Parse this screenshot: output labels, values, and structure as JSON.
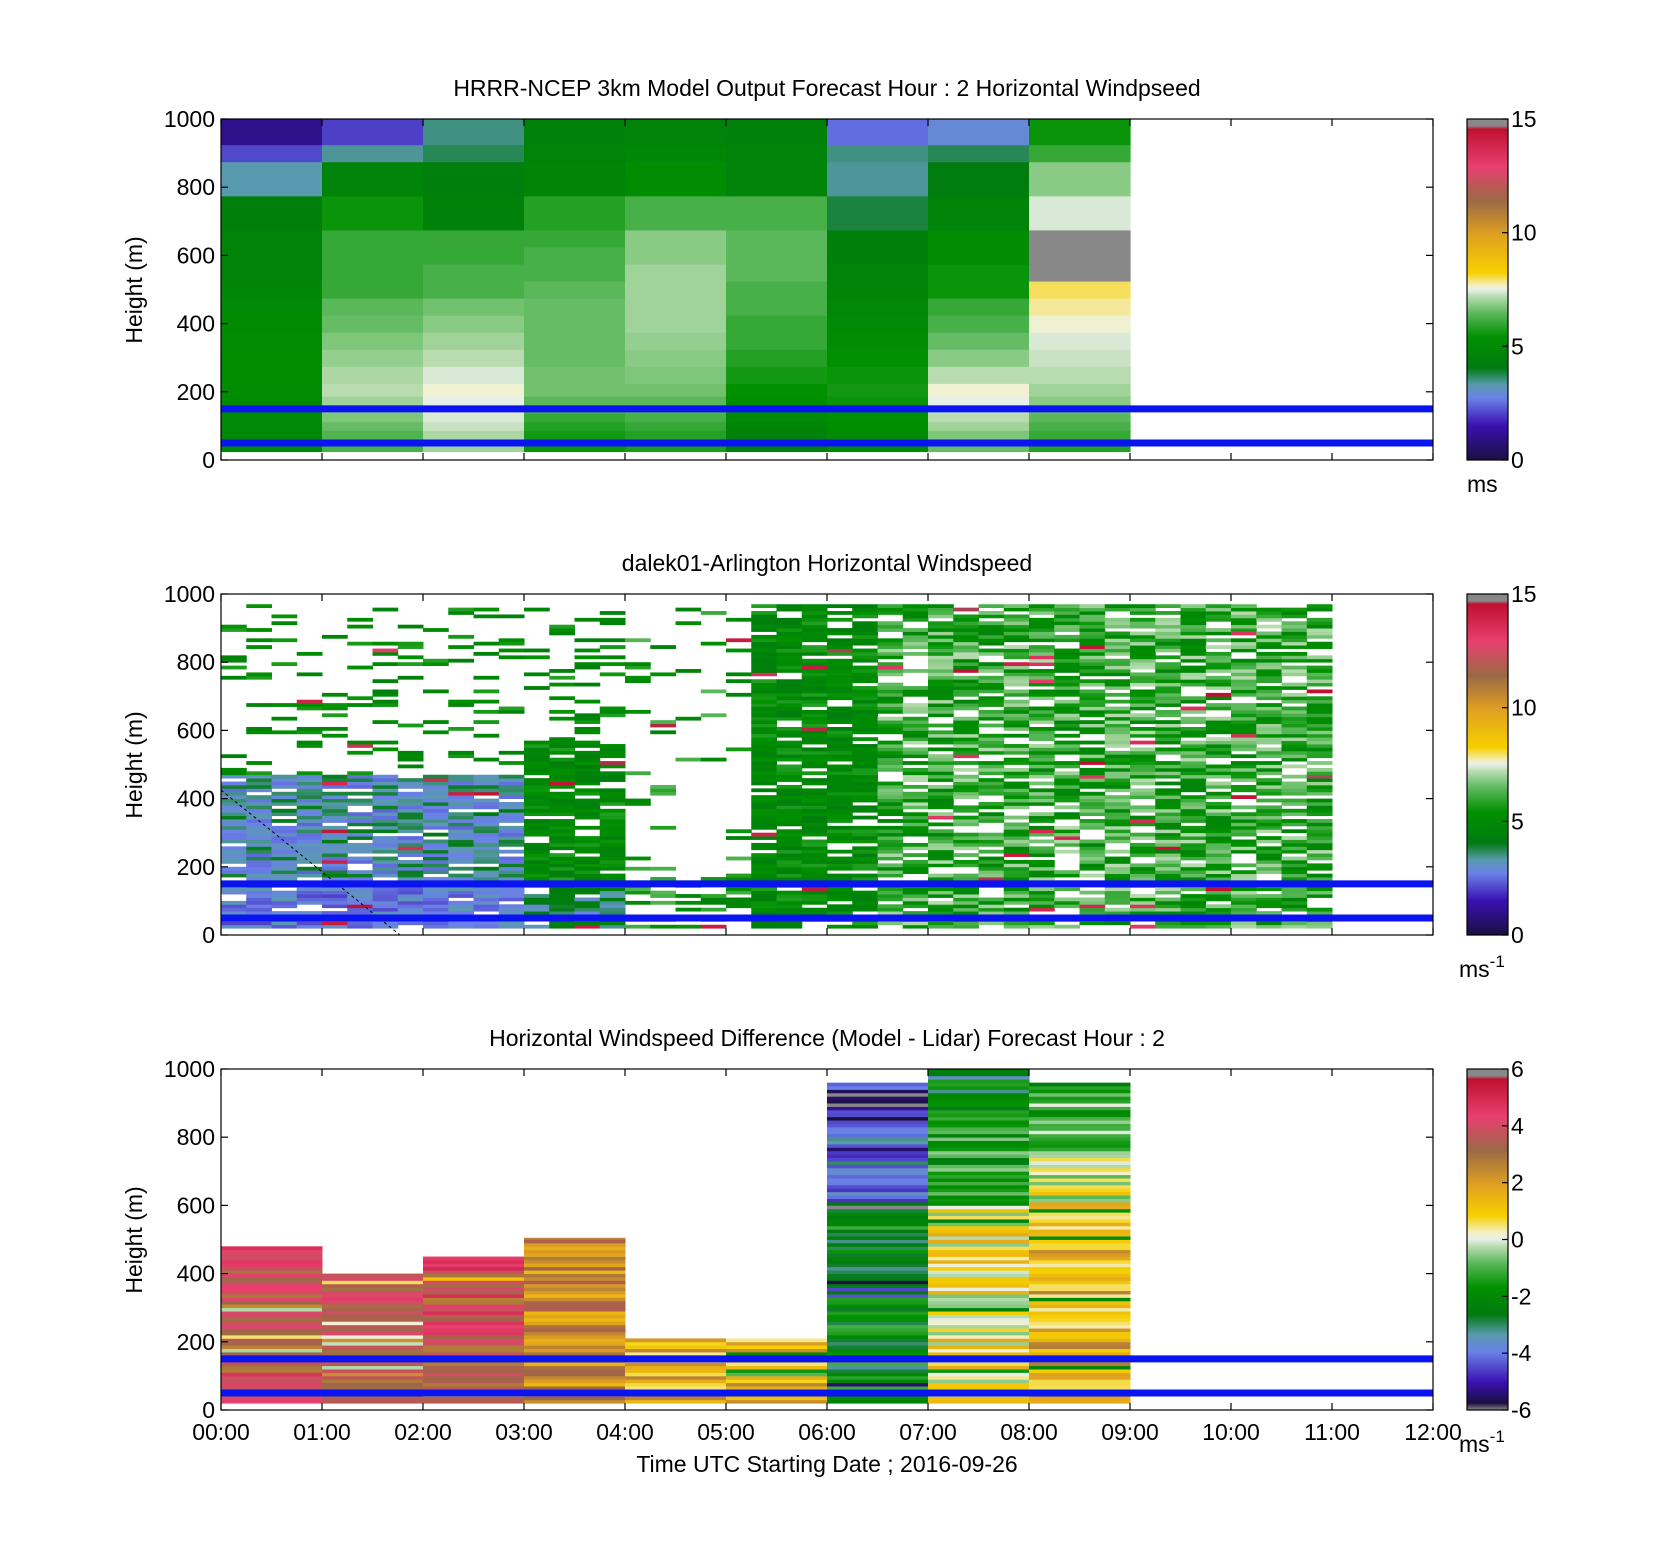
{
  "figure": {
    "xlabel": "Time UTC  Starting Date ; 2016-09-26",
    "x_ticks": [
      "00:00",
      "01:00",
      "02:00",
      "03:00",
      "04:00",
      "05:00",
      "06:00",
      "07:00",
      "08:00",
      "09:00",
      "10:00",
      "11:00",
      "12:00"
    ]
  },
  "chart_data": [
    {
      "type": "heatmap",
      "title": "HRRR-NCEP 3km Model Output   Forecast Hour : 2 Horizontal Windpseed",
      "ylabel": "Height (m)",
      "xlim": [
        0,
        12
      ],
      "ylim": [
        0,
        1000
      ],
      "y_ticks": [
        "0",
        "200",
        "400",
        "600",
        "800",
        "1000"
      ],
      "colorbar": {
        "min": 0,
        "max": 15,
        "ticks": [
          "0",
          "5",
          "10",
          "15"
        ],
        "unit": "ms"
      },
      "hlines": [
        50,
        150
      ],
      "hours": [
        0,
        1,
        2,
        3,
        4,
        5,
        6,
        7,
        8
      ],
      "heights": [
        50,
        75,
        100,
        125,
        150,
        175,
        200,
        250,
        300,
        350,
        400,
        450,
        500,
        550,
        600,
        650,
        700,
        750,
        800,
        850,
        900,
        950,
        1000
      ],
      "values": [
        [
          4.8,
          4.9,
          5.0,
          5.0,
          5.0,
          5.1,
          5.2,
          5.3,
          5.3,
          5.2,
          5.1,
          5.0,
          4.8,
          4.6,
          4.6,
          4.6,
          4.4,
          4.4,
          3.3,
          3.3,
          2.1,
          1.0,
          1.0
        ],
        [
          6.2,
          6.3,
          6.5,
          6.7,
          6.8,
          7.0,
          7.2,
          7.1,
          6.9,
          6.7,
          6.5,
          6.4,
          6.0,
          6.0,
          6.0,
          6.0,
          5.5,
          5.5,
          4.6,
          4.6,
          3.4,
          2.0,
          2.0
        ],
        [
          7.0,
          7.1,
          7.3,
          7.4,
          7.5,
          7.5,
          7.6,
          7.4,
          7.2,
          7.0,
          6.8,
          6.6,
          6.2,
          6.2,
          6.0,
          6.0,
          4.5,
          4.5,
          4.3,
          4.3,
          3.7,
          3.5,
          3.5
        ],
        [
          5.5,
          5.6,
          5.8,
          6.0,
          6.2,
          6.4,
          6.6,
          6.6,
          6.5,
          6.5,
          6.5,
          6.5,
          6.4,
          6.2,
          6.2,
          6.0,
          5.8,
          5.8,
          4.7,
          4.7,
          4.6,
          4.5,
          4.5
        ],
        [
          5.7,
          5.8,
          6.0,
          6.2,
          6.3,
          6.4,
          6.6,
          6.7,
          6.8,
          6.9,
          7.0,
          7.0,
          7.0,
          7.0,
          6.8,
          6.8,
          6.2,
          6.2,
          5.2,
          5.2,
          4.8,
          4.6,
          4.6
        ],
        [
          4.3,
          4.5,
          4.7,
          5.0,
          5.2,
          5.3,
          5.4,
          5.6,
          5.8,
          6.0,
          6.0,
          6.2,
          6.2,
          6.4,
          6.4,
          6.4,
          6.2,
          6.2,
          4.6,
          4.6,
          4.6,
          4.5,
          4.5
        ],
        [
          5.0,
          5.1,
          5.2,
          5.4,
          5.4,
          5.5,
          5.6,
          5.5,
          5.4,
          5.2,
          5.0,
          4.9,
          4.7,
          4.6,
          4.4,
          4.4,
          3.8,
          3.8,
          3.4,
          3.4,
          3.5,
          2.5,
          2.5
        ],
        [
          6.5,
          6.7,
          7.0,
          7.2,
          7.3,
          7.5,
          7.6,
          7.2,
          6.8,
          6.5,
          6.2,
          6.0,
          5.5,
          5.5,
          5.2,
          5.2,
          4.6,
          4.6,
          4.2,
          4.2,
          3.7,
          2.9,
          2.9
        ],
        [
          5.8,
          6.0,
          6.2,
          6.4,
          6.6,
          6.8,
          7.0,
          7.2,
          7.3,
          7.4,
          7.6,
          7.8,
          8.0,
          15.5,
          15.5,
          15.5,
          7.4,
          7.4,
          6.8,
          6.8,
          6.0,
          5.5,
          5.5
        ]
      ]
    },
    {
      "type": "heatmap",
      "title": "dalek01-Arlington  Horizontal Windspeed",
      "ylabel": "Height (m)",
      "xlim": [
        0,
        12
      ],
      "ylim": [
        0,
        1000
      ],
      "y_ticks": [
        "0",
        "200",
        "400",
        "600",
        "800",
        "1000"
      ],
      "colorbar": {
        "min": 0,
        "max": 15,
        "ticks": [
          "0",
          "5",
          "10",
          "15"
        ],
        "unit": "ms",
        "unit_exp": "-1"
      },
      "hlines": [
        50,
        150
      ],
      "data_extent_hours": [
        0,
        10.85
      ]
    },
    {
      "type": "heatmap",
      "title": "Horizontal Windspeed Difference (Model - Lidar) Forecast Hour : 2",
      "ylabel": "Height (m)",
      "xlim": [
        0,
        12
      ],
      "ylim": [
        0,
        1000
      ],
      "y_ticks": [
        "0",
        "200",
        "400",
        "600",
        "800",
        "1000"
      ],
      "colorbar": {
        "min": -6,
        "max": 6,
        "ticks": [
          "-6",
          "-4",
          "-2",
          "0",
          "2",
          "4",
          "6"
        ],
        "unit": "ms",
        "unit_exp": "-1"
      },
      "hlines": [
        50,
        150
      ],
      "bars": [
        {
          "hour": 0,
          "top": 480,
          "mean": 3.5
        },
        {
          "hour": 1,
          "top": 400,
          "mean": 3.3
        },
        {
          "hour": 2,
          "top": 450,
          "mean": 3.8
        },
        {
          "hour": 3,
          "top": 505,
          "mean": 2.3
        },
        {
          "hour": 4,
          "top": 210,
          "mean": 1.5
        },
        {
          "hour": 5,
          "top": 210,
          "mean": 1.5
        },
        {
          "hour": 6,
          "top": 960,
          "mean": -2.2
        },
        {
          "hour": 7,
          "top": 1000,
          "mean": 0.5
        },
        {
          "hour": 8,
          "top": 960,
          "mean": 1.5
        }
      ]
    }
  ]
}
